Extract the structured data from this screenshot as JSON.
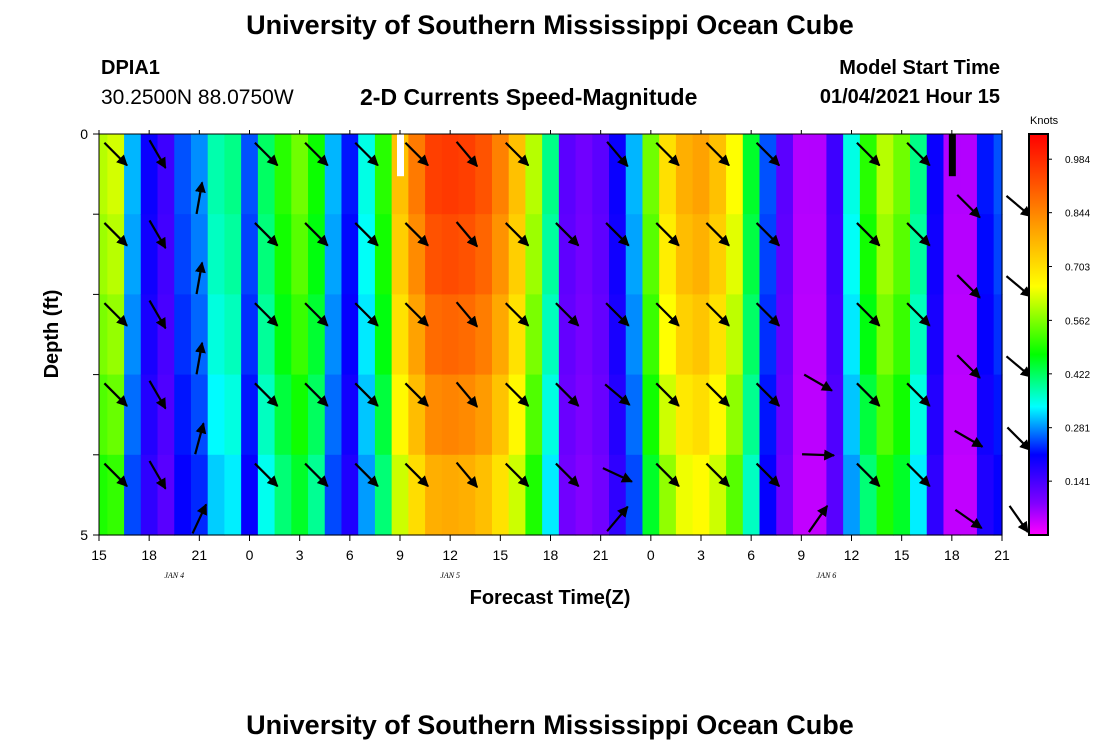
{
  "header": {
    "title": "University of Southern Mississippi Ocean Cube",
    "station": "DPIA1",
    "coords": "30.2500N 88.0750W",
    "subtitle": "2-D Currents Speed-Magnitude",
    "start_label": "Model Start Time",
    "start_value": "01/04/2021 Hour 15"
  },
  "footer": {
    "title": "University of Southern Mississippi Ocean Cube"
  },
  "chart_data": {
    "type": "heatmap",
    "title": "2-D Currents Speed-Magnitude",
    "xlabel": "Forecast Time(Z)",
    "ylabel": "Depth (ft)",
    "xlim": [
      15,
      69
    ],
    "ylim": [
      0,
      5
    ],
    "x_ticks": [
      {
        "h": 15,
        "label": "15"
      },
      {
        "h": 18,
        "label": "18"
      },
      {
        "h": 21,
        "label": "21"
      },
      {
        "h": 24,
        "label": "0"
      },
      {
        "h": 27,
        "label": "3"
      },
      {
        "h": 30,
        "label": "6"
      },
      {
        "h": 33,
        "label": "9"
      },
      {
        "h": 36,
        "label": "12"
      },
      {
        "h": 39,
        "label": "15"
      },
      {
        "h": 42,
        "label": "18"
      },
      {
        "h": 45,
        "label": "21"
      },
      {
        "h": 48,
        "label": "0"
      },
      {
        "h": 51,
        "label": "3"
      },
      {
        "h": 54,
        "label": "6"
      },
      {
        "h": 57,
        "label": "9"
      },
      {
        "h": 60,
        "label": "12"
      },
      {
        "h": 63,
        "label": "15"
      },
      {
        "h": 66,
        "label": "18"
      },
      {
        "h": 69,
        "label": "21"
      }
    ],
    "y_ticks": [
      {
        "d": 0,
        "label": "0"
      },
      {
        "d": 5,
        "label": "5"
      }
    ],
    "date_labels": [
      {
        "h": 19.5,
        "label": "JAN 4"
      },
      {
        "h": 36,
        "label": "JAN 5"
      },
      {
        "h": 58.5,
        "label": "JAN 6"
      }
    ],
    "colorbar": {
      "unit": "Knots",
      "range": [
        0,
        1.05
      ],
      "ticks": [
        "0.984",
        "0.844",
        "0.703",
        "0.562",
        "0.422",
        "0.281",
        "0.141"
      ],
      "tick_values": [
        0.984,
        0.844,
        0.703,
        0.562,
        0.422,
        0.281,
        0.141
      ]
    },
    "speed_profile": {
      "hours": [
        15,
        16,
        17,
        18,
        19,
        20,
        21,
        22,
        23,
        24,
        25,
        26,
        27,
        28,
        29,
        30,
        31,
        32,
        33,
        34,
        35,
        36,
        37,
        38,
        39,
        40,
        41,
        42,
        43,
        44,
        45,
        46,
        47,
        48,
        49,
        50,
        51,
        52,
        53,
        54,
        55,
        56,
        57,
        58,
        59,
        60,
        61,
        62,
        63,
        64,
        65,
        66,
        67,
        68,
        69
      ],
      "speed": [
        0.6,
        0.62,
        0.3,
        0.2,
        0.15,
        0.25,
        0.28,
        0.38,
        0.4,
        0.25,
        0.42,
        0.5,
        0.55,
        0.48,
        0.3,
        0.22,
        0.35,
        0.5,
        0.75,
        0.86,
        0.95,
        0.96,
        0.95,
        0.92,
        0.85,
        0.75,
        0.6,
        0.4,
        0.12,
        0.1,
        0.12,
        0.2,
        0.3,
        0.55,
        0.7,
        0.78,
        0.8,
        0.75,
        0.65,
        0.45,
        0.25,
        0.12,
        0.05,
        0.05,
        0.15,
        0.35,
        0.5,
        0.6,
        0.55,
        0.4,
        0.2,
        0.05,
        0.05,
        0.22,
        0.25
      ],
      "depth_attenuation": [
        1.0,
        0.97,
        0.93,
        0.88,
        0.82
      ]
    },
    "arrows": [
      {
        "h": 16,
        "d": 0.25,
        "dir": 135
      },
      {
        "h": 16,
        "d": 1.25,
        "dir": 135
      },
      {
        "h": 16,
        "d": 2.25,
        "dir": 135
      },
      {
        "h": 16,
        "d": 3.25,
        "dir": 135
      },
      {
        "h": 16,
        "d": 4.25,
        "dir": 135
      },
      {
        "h": 18.5,
        "d": 0.25,
        "dir": 150
      },
      {
        "h": 18.5,
        "d": 1.25,
        "dir": 150
      },
      {
        "h": 18.5,
        "d": 2.25,
        "dir": 150
      },
      {
        "h": 18.5,
        "d": 3.25,
        "dir": 150
      },
      {
        "h": 18.5,
        "d": 4.25,
        "dir": 150
      },
      {
        "h": 21,
        "d": 0.8,
        "dir": 10
      },
      {
        "h": 21,
        "d": 1.8,
        "dir": 10
      },
      {
        "h": 21,
        "d": 2.8,
        "dir": 10
      },
      {
        "h": 21,
        "d": 3.8,
        "dir": 15
      },
      {
        "h": 21,
        "d": 4.8,
        "dir": 25
      },
      {
        "h": 25,
        "d": 0.25,
        "dir": 135
      },
      {
        "h": 25,
        "d": 1.25,
        "dir": 135
      },
      {
        "h": 25,
        "d": 2.25,
        "dir": 135
      },
      {
        "h": 25,
        "d": 3.25,
        "dir": 135
      },
      {
        "h": 25,
        "d": 4.25,
        "dir": 135
      },
      {
        "h": 28,
        "d": 0.25,
        "dir": 135
      },
      {
        "h": 28,
        "d": 1.25,
        "dir": 135
      },
      {
        "h": 28,
        "d": 2.25,
        "dir": 135
      },
      {
        "h": 28,
        "d": 3.25,
        "dir": 135
      },
      {
        "h": 28,
        "d": 4.25,
        "dir": 135
      },
      {
        "h": 31,
        "d": 0.25,
        "dir": 135
      },
      {
        "h": 31,
        "d": 1.25,
        "dir": 135
      },
      {
        "h": 31,
        "d": 2.25,
        "dir": 135
      },
      {
        "h": 31,
        "d": 3.25,
        "dir": 135
      },
      {
        "h": 31,
        "d": 4.25,
        "dir": 135
      },
      {
        "h": 34,
        "d": 0.25,
        "dir": 135
      },
      {
        "h": 34,
        "d": 1.25,
        "dir": 135
      },
      {
        "h": 34,
        "d": 2.25,
        "dir": 135
      },
      {
        "h": 34,
        "d": 3.25,
        "dir": 135
      },
      {
        "h": 34,
        "d": 4.25,
        "dir": 135
      },
      {
        "h": 37,
        "d": 0.25,
        "dir": 140
      },
      {
        "h": 37,
        "d": 1.25,
        "dir": 140
      },
      {
        "h": 37,
        "d": 2.25,
        "dir": 140
      },
      {
        "h": 37,
        "d": 3.25,
        "dir": 140
      },
      {
        "h": 37,
        "d": 4.25,
        "dir": 140
      },
      {
        "h": 40,
        "d": 0.25,
        "dir": 135
      },
      {
        "h": 40,
        "d": 1.25,
        "dir": 135
      },
      {
        "h": 40,
        "d": 2.25,
        "dir": 135
      },
      {
        "h": 40,
        "d": 3.25,
        "dir": 135
      },
      {
        "h": 40,
        "d": 4.25,
        "dir": 135
      },
      {
        "h": 43,
        "d": 1.25,
        "dir": 135
      },
      {
        "h": 43,
        "d": 2.25,
        "dir": 135
      },
      {
        "h": 43,
        "d": 3.25,
        "dir": 135
      },
      {
        "h": 43,
        "d": 4.25,
        "dir": 135
      },
      {
        "h": 46,
        "d": 0.25,
        "dir": 140
      },
      {
        "h": 46,
        "d": 1.25,
        "dir": 135
      },
      {
        "h": 46,
        "d": 2.25,
        "dir": 135
      },
      {
        "h": 46,
        "d": 3.25,
        "dir": 130
      },
      {
        "h": 46,
        "d": 4.25,
        "dir": 115
      },
      {
        "h": 46,
        "d": 4.8,
        "dir": 40
      },
      {
        "h": 49,
        "d": 0.25,
        "dir": 135
      },
      {
        "h": 49,
        "d": 1.25,
        "dir": 135
      },
      {
        "h": 49,
        "d": 2.25,
        "dir": 135
      },
      {
        "h": 49,
        "d": 3.25,
        "dir": 135
      },
      {
        "h": 49,
        "d": 4.25,
        "dir": 135
      },
      {
        "h": 52,
        "d": 0.25,
        "dir": 135
      },
      {
        "h": 52,
        "d": 1.25,
        "dir": 135
      },
      {
        "h": 52,
        "d": 2.25,
        "dir": 135
      },
      {
        "h": 52,
        "d": 3.25,
        "dir": 135
      },
      {
        "h": 52,
        "d": 4.25,
        "dir": 135
      },
      {
        "h": 55,
        "d": 0.25,
        "dir": 135
      },
      {
        "h": 55,
        "d": 1.25,
        "dir": 135
      },
      {
        "h": 55,
        "d": 2.25,
        "dir": 135
      },
      {
        "h": 55,
        "d": 3.25,
        "dir": 135
      },
      {
        "h": 55,
        "d": 4.25,
        "dir": 135
      },
      {
        "h": 58,
        "d": 3.1,
        "dir": 120
      },
      {
        "h": 58,
        "d": 4.0,
        "dir": 92
      },
      {
        "h": 58,
        "d": 4.8,
        "dir": 35
      },
      {
        "h": 61,
        "d": 0.25,
        "dir": 135
      },
      {
        "h": 61,
        "d": 1.25,
        "dir": 135
      },
      {
        "h": 61,
        "d": 2.25,
        "dir": 135
      },
      {
        "h": 61,
        "d": 3.25,
        "dir": 135
      },
      {
        "h": 61,
        "d": 4.25,
        "dir": 135
      },
      {
        "h": 64,
        "d": 0.25,
        "dir": 135
      },
      {
        "h": 64,
        "d": 1.25,
        "dir": 135
      },
      {
        "h": 64,
        "d": 2.25,
        "dir": 135
      },
      {
        "h": 64,
        "d": 3.25,
        "dir": 135
      },
      {
        "h": 64,
        "d": 4.25,
        "dir": 135
      },
      {
        "h": 67,
        "d": 0.9,
        "dir": 135
      },
      {
        "h": 67,
        "d": 1.9,
        "dir": 135
      },
      {
        "h": 67,
        "d": 2.9,
        "dir": 135
      },
      {
        "h": 67,
        "d": 3.8,
        "dir": 120
      },
      {
        "h": 67,
        "d": 4.8,
        "dir": 125
      },
      {
        "h": 70,
        "d": 0.9,
        "dir": 130
      },
      {
        "h": 70,
        "d": 1.9,
        "dir": 130
      },
      {
        "h": 70,
        "d": 2.9,
        "dir": 130
      },
      {
        "h": 70,
        "d": 3.8,
        "dir": 135
      },
      {
        "h": 70,
        "d": 4.8,
        "dir": 145
      }
    ],
    "markers": [
      {
        "h": 33,
        "d": 0.1,
        "color": "#ffffff"
      },
      {
        "h": 66,
        "d": 0.1,
        "color": "#000000"
      }
    ]
  }
}
